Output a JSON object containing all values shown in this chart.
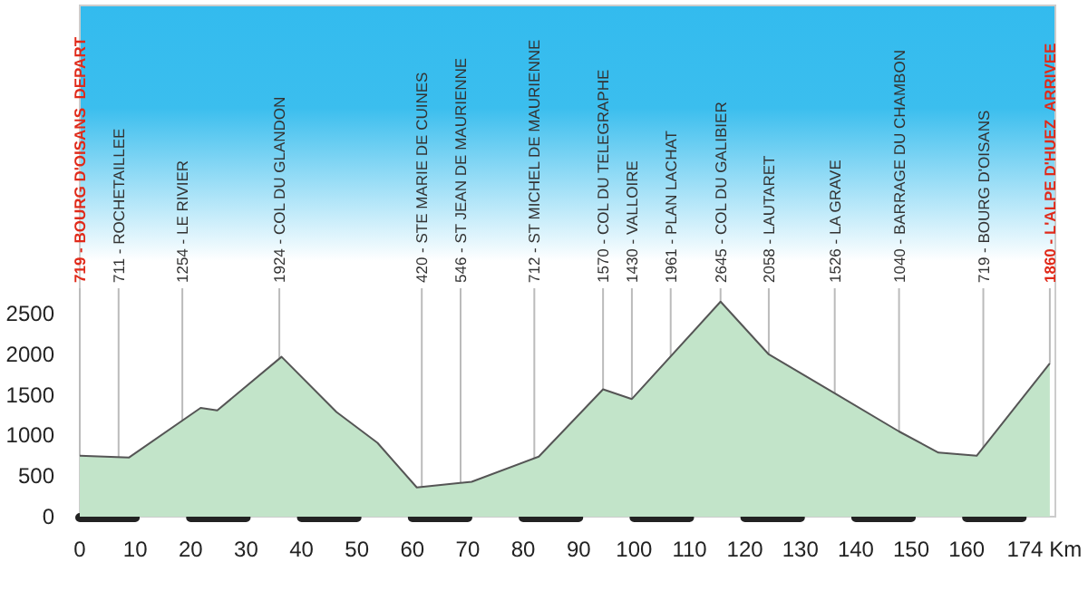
{
  "chart_data": {
    "type": "area",
    "x": [
      0,
      8.9,
      21.8,
      24.8,
      36.4,
      46.3,
      53.7,
      60.8,
      70.7,
      82.8,
      94.4,
      99.6,
      115.6,
      124.3,
      136.2,
      147.8,
      154.9,
      161.8,
      175
    ],
    "values": [
      750,
      730,
      1340,
      1310,
      1970,
      1290,
      910,
      360,
      430,
      740,
      1570,
      1450,
      2650,
      2000,
      1520,
      1050,
      790,
      750,
      1890
    ],
    "color": "#c2e4c9",
    "xlim": [
      0,
      176
    ],
    "xticks": [
      0,
      10,
      20,
      30,
      40,
      50,
      60,
      70,
      80,
      90,
      100,
      110,
      120,
      130,
      140,
      150,
      160,
      {
        "value": 174,
        "label": "174 Km"
      }
    ],
    "ylim": [
      0,
      6300
    ],
    "yticks": [
      0,
      500,
      1000,
      1500,
      2000,
      2500
    ],
    "grid": false,
    "annotations": [
      {
        "text": "719 - BOURG D'OISANS  DEPART",
        "x": 0,
        "y": 750
      },
      {
        "text": "711 - ROCHETAILLEE",
        "x": 7,
        "y": 730
      },
      {
        "text": "1254 - LE RIVIER",
        "x": 18.5,
        "y": 1180
      },
      {
        "text": "1924 - COL DU GLANDON",
        "x": 36,
        "y": 1950
      },
      {
        "text": "420 - STE MARIE DE CUINES",
        "x": 61.7,
        "y": 370
      },
      {
        "text": "546 - ST JEAN DE MAURIENNE",
        "x": 68.7,
        "y": 420
      },
      {
        "text": "712 - ST MICHEL DE MAURIENNE",
        "x": 82,
        "y": 720
      },
      {
        "text": "1570 - COL DU TELEGRAPHE",
        "x": 94.4,
        "y": 1570
      },
      {
        "text": "1430 - VALLOIRE",
        "x": 99.6,
        "y": 1450
      },
      {
        "text": "1961 - PLAN LACHAT",
        "x": 106.6,
        "y": 1970
      },
      {
        "text": "2645 - COL DU GALIBIER",
        "x": 115.6,
        "y": 2650
      },
      {
        "text": "2058 - LAUTARET",
        "x": 124.3,
        "y": 2000
      },
      {
        "text": "1526 - LA GRAVE",
        "x": 136.2,
        "y": 1520
      },
      {
        "text": "1040 - BARRAGE DU CHAMBON",
        "x": 147.8,
        "y": 1050
      },
      {
        "text": "719 - BOURG D'OISANS",
        "x": 163,
        "y": 850
      },
      {
        "text": "1860 - L'ALPE D'HUEZ  ARRIVEE",
        "x": 175,
        "y": 1890
      }
    ]
  }
}
